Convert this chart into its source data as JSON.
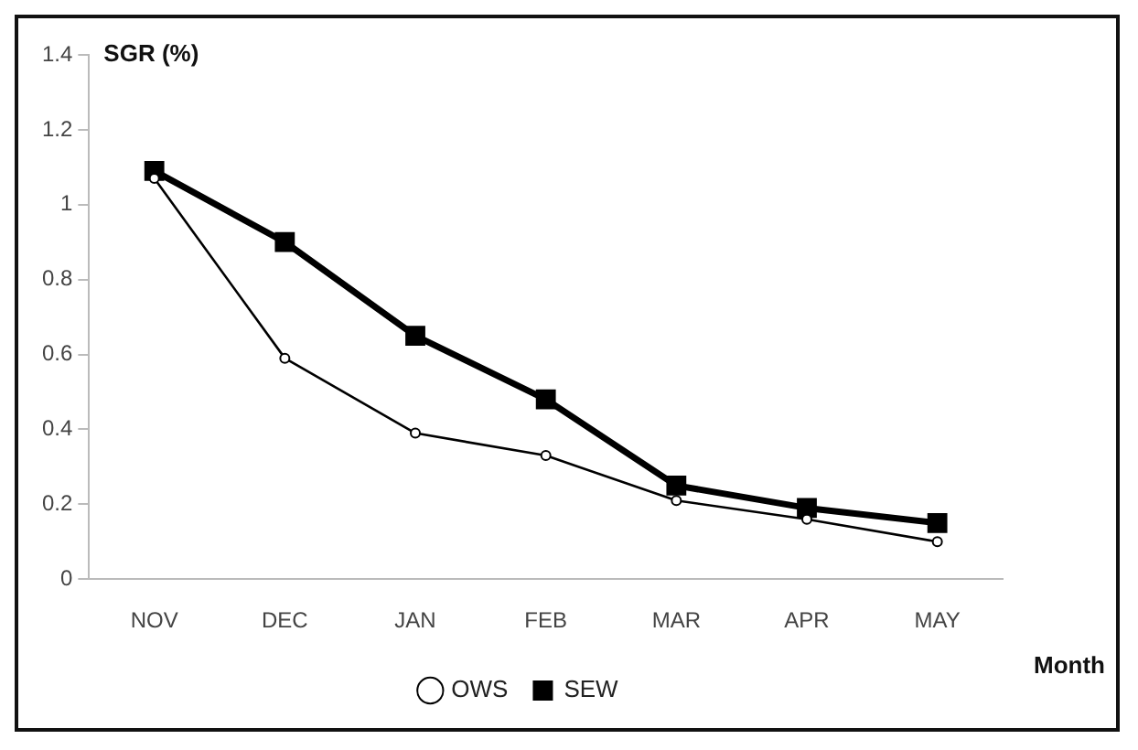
{
  "chart_data": {
    "type": "line",
    "ylabel": "SGR (%)",
    "xlabel": "Month",
    "categories": [
      "NOV",
      "DEC",
      "JAN",
      "FEB",
      "MAR",
      "APR",
      "MAY"
    ],
    "series": [
      {
        "name": "OWS",
        "color": "#000000",
        "marker": "circle",
        "values": [
          1.07,
          0.59,
          0.39,
          0.33,
          0.21,
          0.16,
          0.1
        ]
      },
      {
        "name": "SEW",
        "color": "#000000",
        "marker": "square",
        "values": [
          1.09,
          0.9,
          0.65,
          0.48,
          0.25,
          0.19,
          0.15
        ]
      }
    ],
    "ylim": [
      0,
      1.4
    ],
    "yticks": [
      0,
      0.2,
      0.4,
      0.6,
      0.8,
      1,
      1.2,
      1.4
    ],
    "grid": false,
    "legend": "bottom",
    "line_style": "solid"
  }
}
